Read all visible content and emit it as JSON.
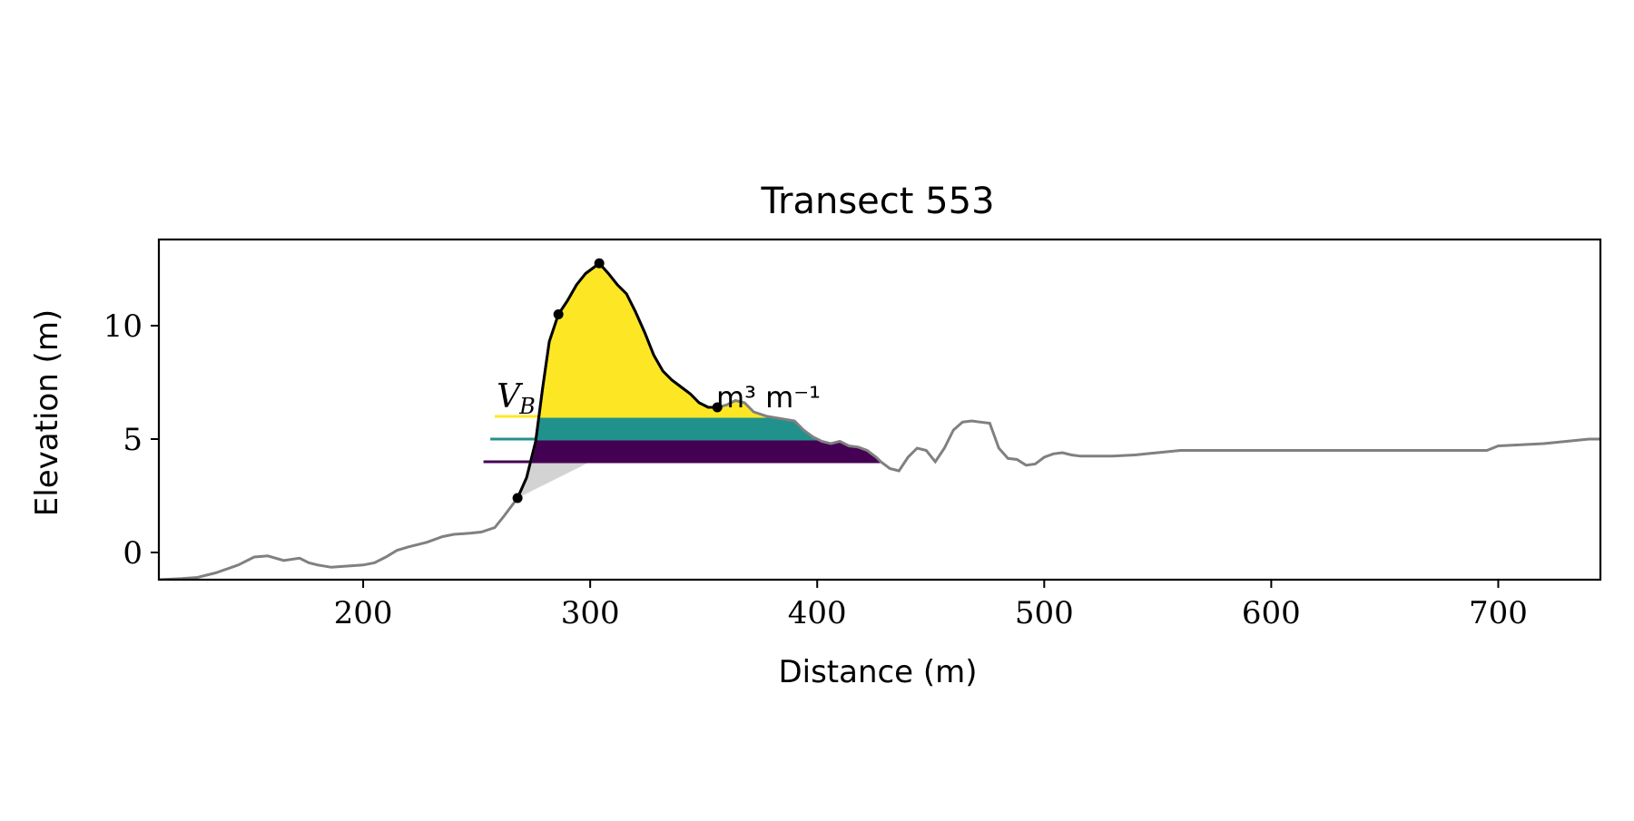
{
  "chart_data": {
    "type": "line",
    "title": "Transect 553",
    "xlabel": "Distance (m)",
    "ylabel": "Elevation (m)",
    "xlim": [
      110,
      745
    ],
    "ylim": [
      -1.2,
      13.8
    ],
    "xticks": [
      200,
      300,
      400,
      500,
      600,
      700
    ],
    "yticks": [
      0,
      5,
      10
    ],
    "grid": false,
    "annotation": {
      "text_main": "V",
      "text_sub": "B",
      "text_units": "m³ m⁻¹",
      "x": 258,
      "y": 6.4
    },
    "colors": {
      "profile": "#808080",
      "dune": "#000000",
      "base_fill": "#d3d3d3",
      "level_high": "#fde725",
      "level_mid": "#21918c",
      "level_low": "#440154"
    },
    "profile": {
      "x": [
        110,
        120,
        127,
        135,
        145,
        152,
        158,
        165,
        172,
        176,
        180,
        186,
        193,
        200,
        205,
        210,
        215,
        220,
        228,
        235,
        240,
        247,
        252,
        258,
        262,
        268
      ],
      "y": [
        -1.2,
        -1.15,
        -1.1,
        -0.9,
        -0.55,
        -0.2,
        -0.15,
        -0.35,
        -0.25,
        -0.45,
        -0.55,
        -0.65,
        -0.6,
        -0.55,
        -0.45,
        -0.2,
        0.1,
        0.25,
        0.45,
        0.7,
        0.8,
        0.85,
        0.9,
        1.1,
        1.6,
        2.4
      ],
      "tail_x": [
        428,
        432,
        436,
        440,
        444,
        448,
        452,
        456,
        460,
        464,
        468,
        472,
        476,
        480,
        484,
        488,
        492,
        496,
        500,
        504,
        508,
        512,
        516,
        520,
        530,
        540,
        550,
        560,
        600,
        650,
        695,
        700,
        720,
        740,
        745
      ],
      "tail_y": [
        4.0,
        3.7,
        3.6,
        4.2,
        4.6,
        4.5,
        4.0,
        4.6,
        5.4,
        5.75,
        5.8,
        5.75,
        5.7,
        4.6,
        4.15,
        4.1,
        3.85,
        3.9,
        4.2,
        4.35,
        4.4,
        4.3,
        4.25,
        4.25,
        4.25,
        4.3,
        4.4,
        4.5,
        4.5,
        4.5,
        4.5,
        4.7,
        4.8,
        5.0,
        5.0
      ]
    },
    "dune_profile": {
      "x": [
        268,
        272,
        276,
        279,
        282,
        286,
        290,
        294,
        298,
        302,
        304,
        308,
        312,
        316,
        320,
        324,
        328,
        332,
        336,
        340,
        344,
        348,
        352,
        356
      ],
      "y": [
        2.4,
        3.3,
        4.9,
        7.2,
        9.3,
        10.5,
        11.1,
        11.8,
        12.3,
        12.6,
        12.75,
        12.3,
        11.8,
        11.4,
        10.6,
        9.7,
        8.7,
        8.0,
        7.6,
        7.3,
        7.0,
        6.6,
        6.4,
        6.4
      ]
    },
    "upper_profile": {
      "x": [
        356,
        360,
        364,
        368,
        372,
        378,
        384,
        390,
        394,
        398,
        402,
        406,
        410,
        414,
        418,
        422,
        426,
        428
      ],
      "y": [
        6.4,
        6.5,
        6.7,
        6.6,
        6.2,
        6.0,
        5.9,
        5.8,
        5.4,
        5.1,
        4.9,
        4.8,
        4.9,
        4.7,
        4.65,
        4.5,
        4.2,
        4.0
      ]
    },
    "key_points": [
      {
        "x": 268,
        "y": 2.4
      },
      {
        "x": 286,
        "y": 10.5
      },
      {
        "x": 304,
        "y": 12.75
      },
      {
        "x": 356,
        "y": 6.4
      }
    ],
    "levels": [
      {
        "elevation": 6.0,
        "x_start": 258,
        "color_key": "level_high"
      },
      {
        "elevation": 5.0,
        "x_start": 256,
        "color_key": "level_mid"
      },
      {
        "elevation": 4.0,
        "x_start": 253,
        "color_key": "level_low"
      }
    ]
  }
}
